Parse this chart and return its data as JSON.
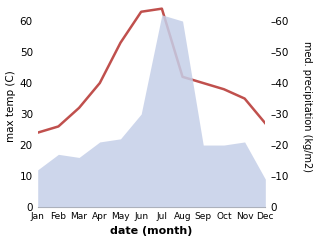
{
  "months": [
    "Jan",
    "Feb",
    "Mar",
    "Apr",
    "May",
    "Jun",
    "Jul",
    "Aug",
    "Sep",
    "Oct",
    "Nov",
    "Dec"
  ],
  "temperature": [
    24,
    26,
    32,
    40,
    53,
    63,
    64,
    42,
    40,
    38,
    35,
    27
  ],
  "precipitation": [
    12,
    17,
    16,
    21,
    22,
    30,
    62,
    60,
    20,
    20,
    21,
    9
  ],
  "temp_color": "#c0504d",
  "precip_color": "#c5cfe8",
  "ylabel_left": "max temp (C)",
  "ylabel_right": "med. precipitation (kg/m2)",
  "xlabel": "date (month)",
  "ylim": [
    0,
    65
  ],
  "yticks": [
    0,
    10,
    20,
    30,
    40,
    50,
    60
  ],
  "background_color": "#ffffff",
  "line_width": 1.8
}
